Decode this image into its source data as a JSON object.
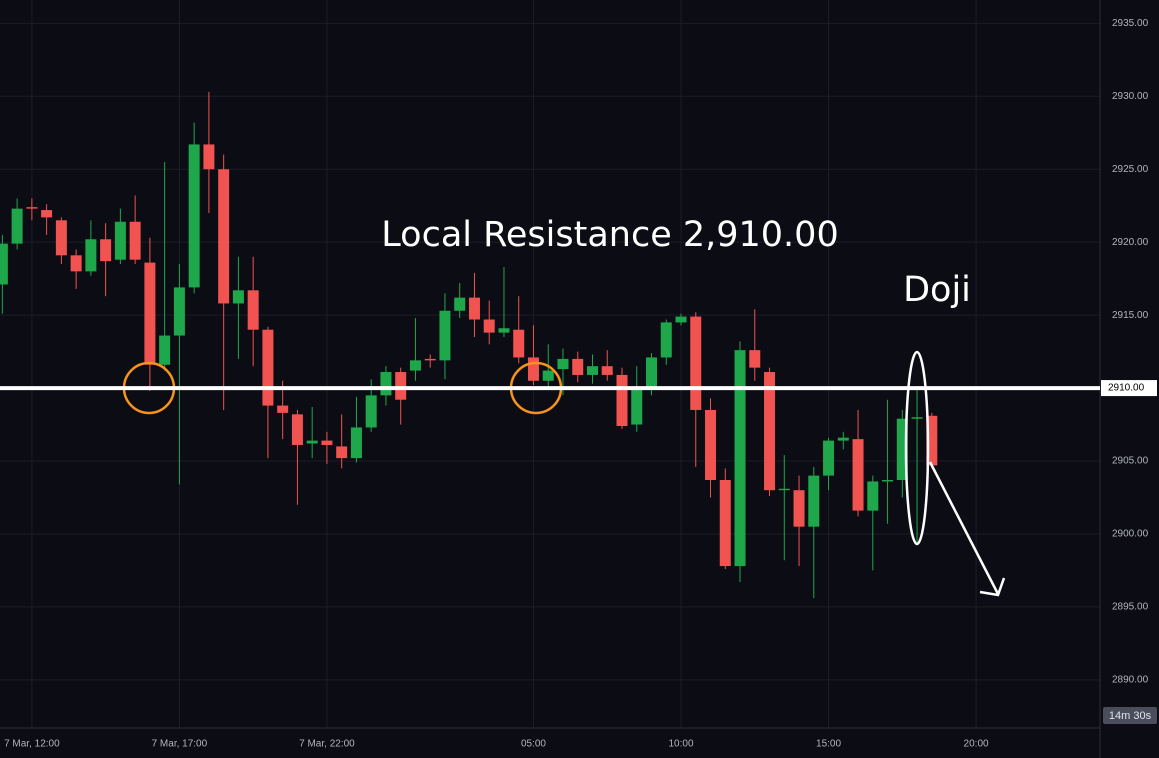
{
  "chart_data": {
    "type": "candlestick",
    "annotations": {
      "resistance": "Local Resistance 2,910.00",
      "pattern": "Doji",
      "countdown": "14m 30s"
    },
    "resistance_level": {
      "value": 2910,
      "label": "2910.00"
    },
    "x": [
      11,
      11.5,
      12,
      12.5,
      13,
      13.5,
      14,
      14.5,
      15,
      15.5,
      16,
      16.5,
      17,
      17.5,
      18,
      18.5,
      19,
      19.5,
      20,
      20.5,
      21,
      21.5,
      22,
      22.5,
      23,
      23.5,
      24,
      24.5,
      25,
      25.5,
      26,
      26.5,
      27,
      27.5,
      28,
      28.5,
      29,
      29.5,
      30,
      30.5,
      31,
      31.5,
      32,
      32.5,
      33,
      33.5,
      34,
      34.5,
      35,
      35.5,
      36,
      36.5,
      37,
      37.5,
      38,
      38.5,
      39,
      39.5,
      40,
      40.5,
      41,
      41.5,
      42,
      42.5
    ],
    "open": [
      2917.1,
      2919.9,
      2922.4,
      2922.2,
      2921.5,
      2919.1,
      2918.0,
      2920.2,
      2918.8,
      2921.4,
      2918.6,
      2911.6,
      2913.6,
      2916.9,
      2926.7,
      2925.0,
      2915.8,
      2916.7,
      2914.0,
      2908.8,
      2908.2,
      2906.2,
      2906.4,
      2906.0,
      2905.2,
      2907.3,
      2909.5,
      2911.1,
      2911.2,
      2912.0,
      2911.9,
      2915.3,
      2916.2,
      2914.7,
      2913.8,
      2914.0,
      2912.1,
      2910.5,
      2911.3,
      2912.0,
      2910.9,
      2911.5,
      2910.9,
      2907.5,
      2910.0,
      2912.1,
      2914.5,
      2914.9,
      2908.5,
      2903.7,
      2897.8,
      2912.6,
      2911.1,
      2903.0,
      2903.0,
      2900.5,
      2904.0,
      2906.4,
      2906.5,
      2901.6,
      2903.6,
      2903.7,
      2907.9,
      2908.1
    ],
    "high": [
      2920.5,
      2923.0,
      2923.0,
      2922.6,
      2921.7,
      2919.5,
      2921.5,
      2921.3,
      2922.3,
      2923.2,
      2920.3,
      2925.5,
      2918.5,
      2928.2,
      2930.3,
      2926.0,
      2919.0,
      2919.0,
      2914.2,
      2910.5,
      2908.5,
      2908.7,
      2907.0,
      2908.2,
      2909.4,
      2910.6,
      2911.5,
      2911.4,
      2914.8,
      2912.3,
      2916.5,
      2917.2,
      2917.9,
      2916.0,
      2918.3,
      2916.3,
      2914.3,
      2913.0,
      2912.7,
      2912.5,
      2912.3,
      2912.6,
      2911.4,
      2911.5,
      2912.4,
      2914.7,
      2915.1,
      2915.2,
      2909.3,
      2904.5,
      2913.2,
      2915.4,
      2911.4,
      2905.4,
      2904.0,
      2904.6,
      2906.6,
      2907.0,
      2908.5,
      2904.0,
      2909.2,
      2908.5,
      2910.0,
      2908.3
    ],
    "low": [
      2915.1,
      2919.5,
      2921.5,
      2920.5,
      2918.5,
      2916.8,
      2917.7,
      2916.3,
      2918.5,
      2918.5,
      2909.8,
      2911.2,
      2903.4,
      2916.5,
      2922.0,
      2908.5,
      2912.0,
      2911.5,
      2905.2,
      2906.5,
      2902.0,
      2905.2,
      2904.8,
      2904.5,
      2904.9,
      2907.0,
      2908.8,
      2907.5,
      2910.5,
      2911.4,
      2910.6,
      2914.8,
      2913.5,
      2913.0,
      2913.5,
      2911.7,
      2910.2,
      2910.1,
      2909.5,
      2910.4,
      2910.3,
      2910.5,
      2907.2,
      2907.0,
      2909.5,
      2911.6,
      2914.3,
      2904.6,
      2902.5,
      2897.6,
      2896.7,
      2910.5,
      2902.6,
      2898.2,
      2897.8,
      2895.6,
      2903.0,
      2905.8,
      2901.2,
      2897.5,
      2900.7,
      2902.5,
      2899.3,
      2904.5
    ],
    "close": [
      2919.9,
      2922.3,
      2922.3,
      2921.7,
      2919.1,
      2918.0,
      2920.2,
      2918.7,
      2921.4,
      2918.8,
      2911.6,
      2913.6,
      2916.9,
      2926.7,
      2925.0,
      2915.8,
      2916.7,
      2914.0,
      2908.8,
      2908.3,
      2906.1,
      2906.4,
      2906.1,
      2905.2,
      2907.3,
      2909.5,
      2911.1,
      2909.2,
      2911.9,
      2911.9,
      2915.3,
      2916.2,
      2914.7,
      2913.8,
      2914.1,
      2912.1,
      2910.5,
      2911.2,
      2912.0,
      2910.9,
      2911.5,
      2910.9,
      2907.4,
      2910.0,
      2912.1,
      2914.5,
      2914.9,
      2908.5,
      2903.7,
      2897.8,
      2912.6,
      2911.4,
      2903.0,
      2903.1,
      2900.5,
      2904.0,
      2906.4,
      2906.6,
      2901.6,
      2903.6,
      2903.7,
      2907.9,
      2908.0,
      2904.7
    ],
    "up_color": "#1fa84b",
    "down_color": "#f05350",
    "xlim": [
      10.92,
      48.2
    ],
    "xticks": [
      {
        "value": 12,
        "label": "7 Mar, 12:00"
      },
      {
        "value": 17,
        "label": "7 Mar, 17:00"
      },
      {
        "value": 22,
        "label": "7 Mar, 22:00"
      },
      {
        "value": 29,
        "label": "05:00"
      },
      {
        "value": 34,
        "label": "10:00"
      },
      {
        "value": 39,
        "label": "15:00"
      },
      {
        "value": 44,
        "label": "20:00"
      }
    ],
    "ylim": [
      2886.7,
      2936.6
    ],
    "yticks": [
      {
        "value": 2890,
        "label": "2890.00"
      },
      {
        "value": 2895,
        "label": "2895.00"
      },
      {
        "value": 2900,
        "label": "2900.00"
      },
      {
        "value": 2905,
        "label": "2905.00"
      },
      {
        "value": 2910,
        "label": "2910.00"
      },
      {
        "value": 2915,
        "label": "2915.00"
      },
      {
        "value": 2920,
        "label": "2920.00"
      },
      {
        "value": 2925,
        "label": "2925.00"
      },
      {
        "value": 2930,
        "label": "2930.00"
      },
      {
        "value": 2935,
        "label": "2935.00"
      }
    ],
    "grid": true
  }
}
